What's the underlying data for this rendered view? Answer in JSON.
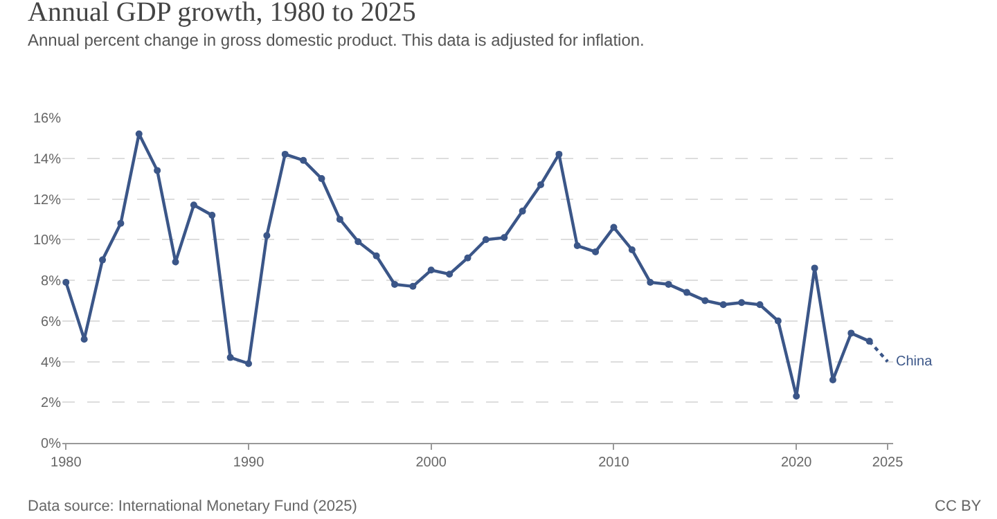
{
  "chart_data": {
    "type": "line",
    "title": "Annual GDP growth, 1980 to 2025",
    "subtitle": "Annual percent change in gross domestic product. This data is adjusted for inflation.",
    "annotations": [
      "Data source: International Monetary Fund (2025)",
      "CC BY"
    ],
    "series": [
      {
        "color": "#3b5688",
        "marker": "circle",
        "line_style": "solid",
        "x": [
          1980,
          1981,
          1982,
          1983,
          1984,
          1985,
          1986,
          1987,
          1988,
          1989,
          1990,
          1991,
          1992,
          1993,
          1994,
          1995,
          1996,
          1997,
          1998,
          1999,
          2000,
          2001,
          2002,
          2003,
          2004,
          2005,
          2006,
          2007,
          2008,
          2009,
          2010,
          2011,
          2012,
          2013,
          2014,
          2015,
          2016,
          2017,
          2018,
          2019,
          2020,
          2021,
          2022,
          2023,
          2024
        ],
        "values": [
          7.9,
          5.1,
          9.0,
          10.8,
          15.2,
          13.4,
          8.9,
          11.7,
          11.2,
          4.2,
          3.9,
          10.2,
          14.2,
          13.9,
          13.0,
          11.0,
          9.9,
          9.2,
          7.8,
          7.7,
          8.5,
          8.3,
          9.1,
          10.0,
          10.1,
          11.4,
          12.7,
          14.2,
          9.7,
          9.4,
          10.6,
          9.5,
          7.9,
          7.8,
          7.4,
          7.0,
          6.8,
          6.9,
          6.8,
          6.0,
          2.3,
          8.6,
          3.1,
          5.4,
          5.0
        ]
      },
      {
        "name": "China",
        "color": "#3b5688",
        "marker": "none",
        "line_style": "dotted",
        "x": [
          2024,
          2025
        ],
        "values": [
          5.0,
          4.0
        ]
      }
    ],
    "xlim": [
      1979.8,
      2025.3
    ],
    "xticks": [
      1980,
      1990,
      2000,
      2010,
      2020,
      2025
    ],
    "ylim": [
      0,
      16
    ],
    "yticks": [
      {
        "value": 0,
        "label": "0%"
      },
      {
        "value": 2,
        "label": "2%"
      },
      {
        "value": 4,
        "label": "4%"
      },
      {
        "value": 6,
        "label": "6%"
      },
      {
        "value": 8,
        "label": "8%"
      },
      {
        "value": 10,
        "label": "10%"
      },
      {
        "value": 12,
        "label": "12%"
      },
      {
        "value": 14,
        "label": "14%"
      },
      {
        "value": 16,
        "label": "16%"
      }
    ],
    "grid": "y",
    "legend": false
  }
}
